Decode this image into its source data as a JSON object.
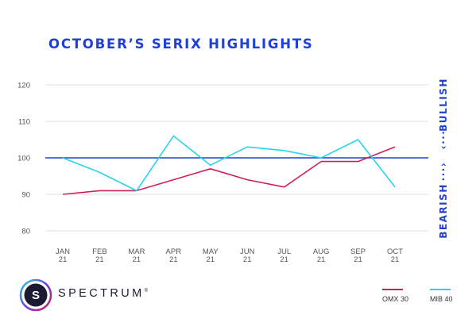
{
  "title": "OCTOBER’S SERIX HIGHLIGHTS",
  "side_labels": {
    "up": "BULLISH",
    "down": "BEARISH"
  },
  "brand": {
    "name": "SPECTRUM",
    "mark": "®"
  },
  "colors": {
    "accent": "#1f3fd6",
    "omx": "#cf1f5c",
    "mib": "#28d3ec",
    "grid": "#dddddd"
  },
  "chart_data": {
    "type": "line",
    "categories": [
      "JAN\n21",
      "FEB\n21",
      "MAR\n21",
      "APR\n21",
      "MAY\n21",
      "JUN\n21",
      "JUL\n21",
      "AUG\n21",
      "SEP\n21",
      "OCT\n21"
    ],
    "yticks": [
      120,
      110,
      100,
      90,
      80
    ],
    "ylim": [
      80,
      120
    ],
    "grid": true,
    "reference_line": 100,
    "legend_position": "bottom-right",
    "series": [
      {
        "name": "OMX 30",
        "color": "#cf1f5c",
        "values": [
          90,
          91,
          91,
          94,
          97,
          94,
          92,
          99,
          99,
          103
        ]
      },
      {
        "name": "MIB 40",
        "color": "#28d3ec",
        "values": [
          100,
          96,
          91,
          106,
          98,
          103,
          102,
          100,
          105,
          92
        ]
      }
    ]
  }
}
